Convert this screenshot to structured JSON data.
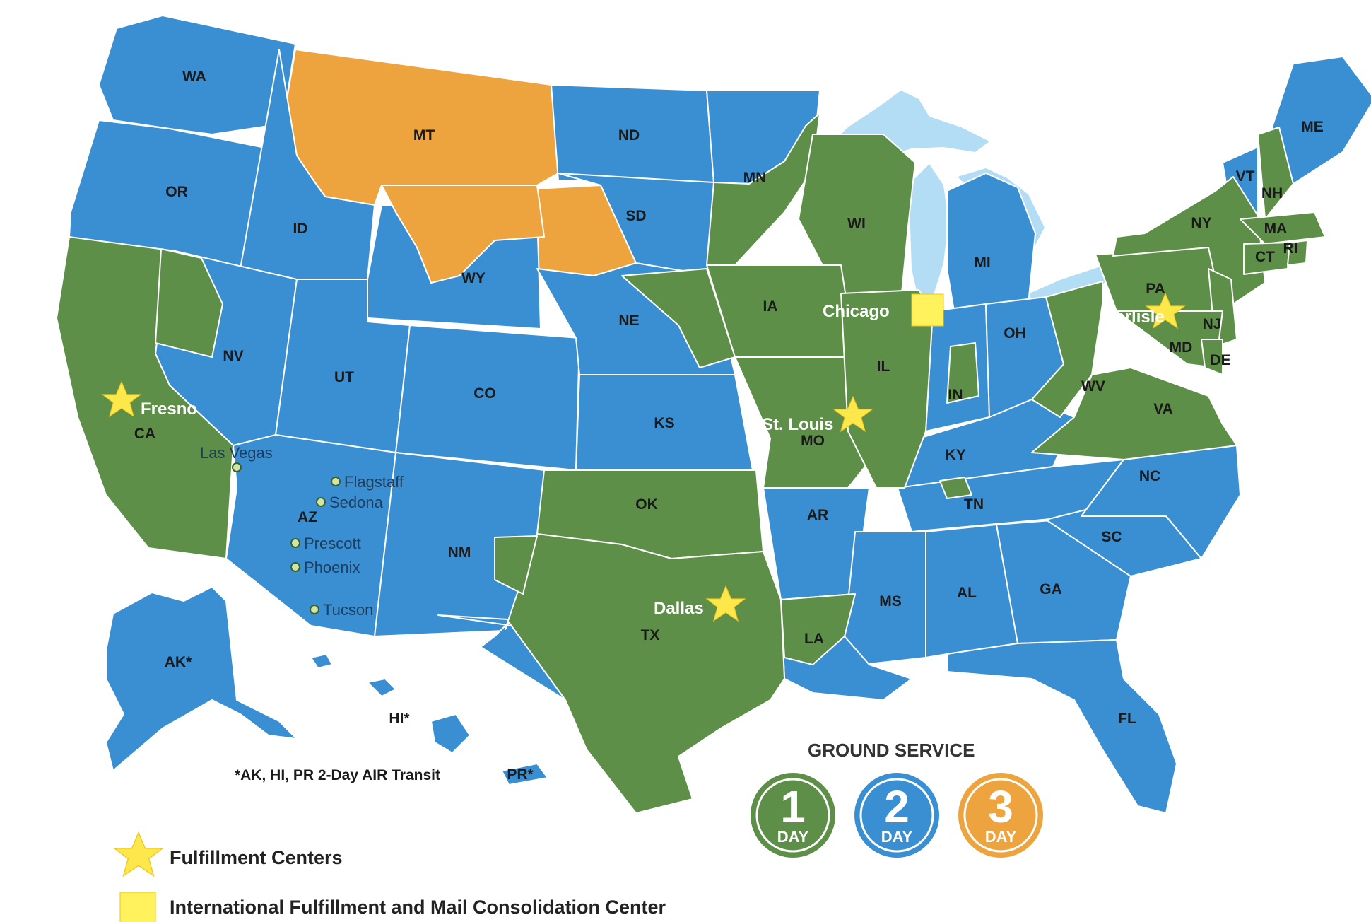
{
  "colors": {
    "one_day": "#5e8f48",
    "two_day": "#3a8fd3",
    "three_day": "#eea43e",
    "lakes": "#b3dcf5",
    "star": "#fde84c",
    "square": "#fff25c"
  },
  "states": {
    "WA": "WA",
    "OR": "OR",
    "CA": "CA",
    "NV": "NV",
    "ID": "ID",
    "MT": "MT",
    "WY": "WY",
    "UT": "UT",
    "AZ": "AZ",
    "CO": "CO",
    "NM": "NM",
    "ND": "ND",
    "SD": "SD",
    "NE": "NE",
    "KS": "KS",
    "OK": "OK",
    "TX": "TX",
    "MN": "MN",
    "IA": "IA",
    "MO": "MO",
    "AR": "AR",
    "LA": "LA",
    "WI": "WI",
    "IL": "IL",
    "MI": "MI",
    "IN": "IN",
    "OH": "OH",
    "KY": "KY",
    "TN": "TN",
    "MS": "MS",
    "AL": "AL",
    "GA": "GA",
    "FL": "FL",
    "SC": "SC",
    "NC": "NC",
    "VA": "VA",
    "WV": "WV",
    "MD": "MD",
    "DE": "DE",
    "PA": "PA",
    "NJ": "NJ",
    "NY": "NY",
    "CT": "CT",
    "RI": "RI",
    "MA": "MA",
    "VT": "VT",
    "NH": "NH",
    "ME": "ME",
    "AK": "AK*",
    "HI": "HI*",
    "PR": "PR*"
  },
  "fulfillment_centers": [
    "Fresno",
    "St. Louis",
    "Dallas",
    "Carlisle"
  ],
  "international_center": "Chicago",
  "arizona_cities": [
    "Las Vegas",
    "Flagstaff",
    "Sedona",
    "Prescott",
    "Phoenix",
    "Tucson"
  ],
  "air_note": "*AK, HI, PR 2-Day AIR Transit",
  "ground_service": {
    "title": "GROUND SERVICE",
    "unit": "DAY",
    "badges": [
      {
        "num": "1",
        "color": "#5e8f48"
      },
      {
        "num": "2",
        "color": "#3a8fd3"
      },
      {
        "num": "3",
        "color": "#eea43e"
      }
    ]
  },
  "legend": {
    "star_label": "Fulfillment Centers",
    "square_label": "International Fulfillment and Mail Consolidation Center"
  }
}
